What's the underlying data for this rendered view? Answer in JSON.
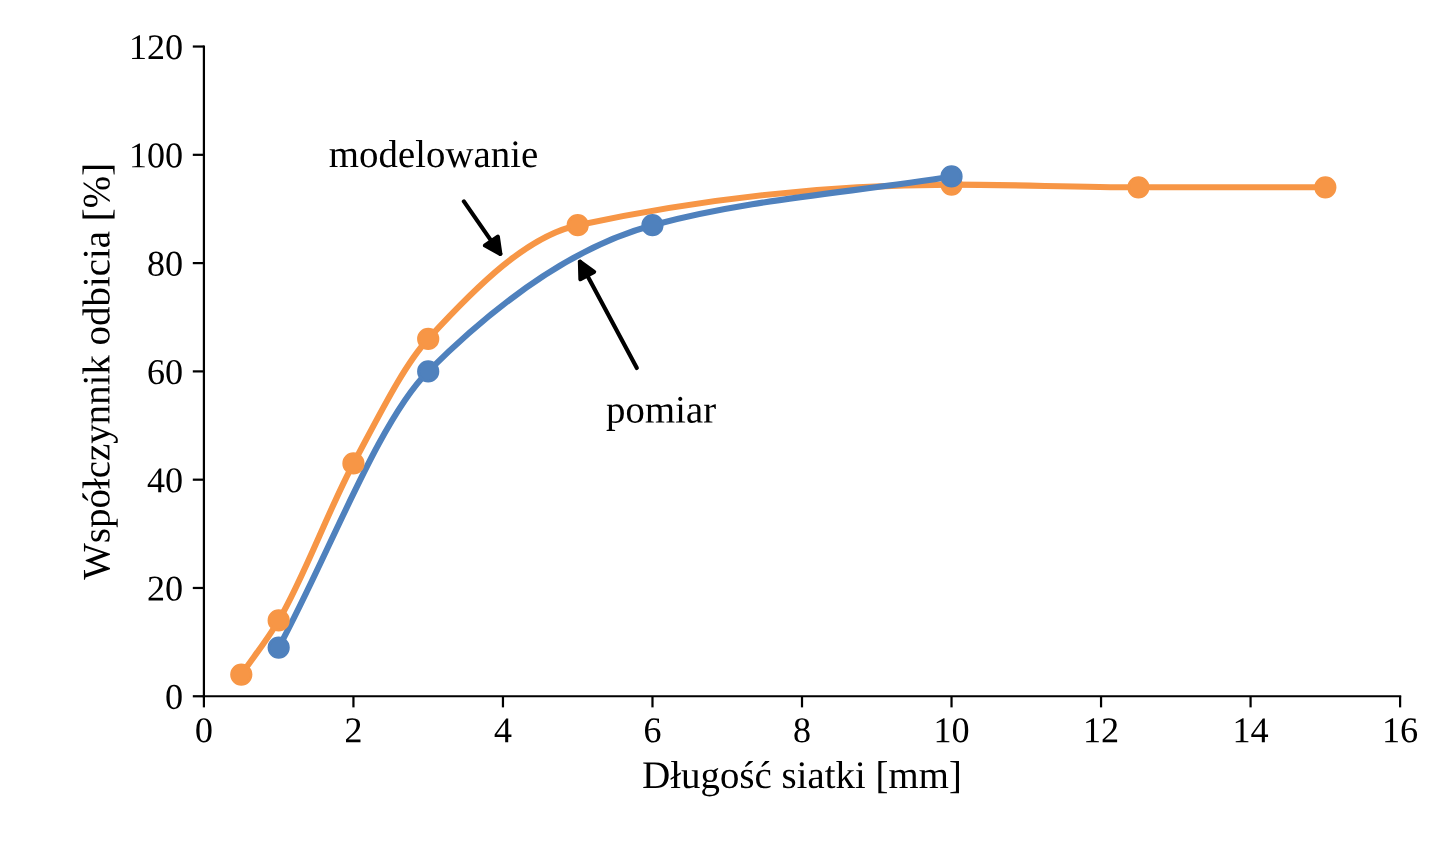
{
  "chart_data": {
    "type": "line",
    "xlabel": "Długość siatki [mm]",
    "ylabel": "Współczynnik odbicia [%]",
    "xlim": [
      0,
      16
    ],
    "xticks": [
      0,
      2,
      4,
      6,
      8,
      10,
      12,
      14,
      16
    ],
    "ylim": [
      0,
      120
    ],
    "yticks": [
      0,
      20,
      40,
      60,
      80,
      100,
      120
    ],
    "grid": false,
    "legend": false,
    "marker": "circle",
    "line_style": "solid",
    "series": [
      {
        "color": "#f79646",
        "x": [
          0.5,
          1,
          2,
          3,
          5,
          10,
          12.5,
          15
        ],
        "values": [
          4,
          14,
          43,
          66,
          87,
          94.5,
          94,
          94
        ]
      },
      {
        "color": "#4f81bd",
        "x": [
          1,
          3,
          6,
          10
        ],
        "values": [
          9,
          60,
          87,
          96
        ]
      }
    ],
    "annotations": [
      {
        "text": "modelowanie",
        "x": 4,
        "y": 81
      },
      {
        "text": "pomiar",
        "x": 5,
        "y": 81
      }
    ]
  }
}
